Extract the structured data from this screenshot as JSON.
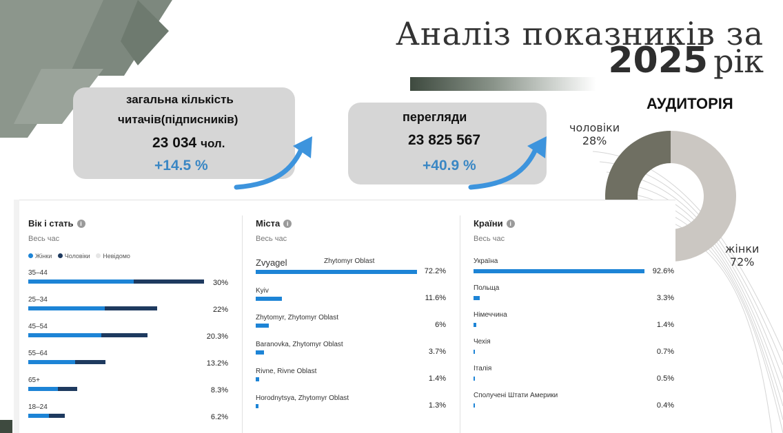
{
  "title": {
    "line1": "Аналіз показників за",
    "year": "2025",
    "suffix": "рік"
  },
  "cards": {
    "readers": {
      "label_line1": "загальна кількість",
      "label_line2": "читачів(підписників)",
      "value": "23 034",
      "unit": "чол.",
      "growth": "+14.5 %"
    },
    "views": {
      "label": "перегляди",
      "value": "23 825 567",
      "growth": "+40.9 %"
    }
  },
  "audience": {
    "title": "АУДИТОРІЯ",
    "men_label": "чоловіки",
    "men_pct": "28%",
    "women_label": "жінки",
    "women_pct": "72%",
    "chart_data": {
      "type": "pie",
      "categories": [
        "чоловіки",
        "жінки"
      ],
      "values": [
        28,
        72
      ],
      "colors": [
        "#6f6f62",
        "#cbc7c2"
      ]
    }
  },
  "age_gender": {
    "title": "Вік і стать",
    "period": "Весь час",
    "legend": {
      "women": "Жінки",
      "men": "Чоловіки",
      "unknown": "Невідомо"
    },
    "colors": {
      "women": "#1d84d6",
      "men": "#1e3a5f",
      "unknown": "#e6e6e6"
    },
    "chart_data": {
      "type": "bar",
      "categories": [
        "35–44",
        "25–34",
        "45–54",
        "55–64",
        "65+",
        "18–24"
      ],
      "series": [
        {
          "name": "Жінки",
          "values": [
            18,
            13,
            12.5,
            8,
            5,
            3.5
          ]
        },
        {
          "name": "Чоловіки",
          "values": [
            12,
            9,
            7.8,
            5.2,
            3.3,
            2.7
          ]
        }
      ],
      "totals": [
        "30%",
        "22%",
        "20.3%",
        "13.2%",
        "8.3%",
        "6.2%"
      ]
    }
  },
  "cities": {
    "title": "Міста",
    "period": "Весь час",
    "chart_data": {
      "type": "bar",
      "categories": [
        "Zvyagel",
        "Kyiv",
        "Zhytomyr, Zhytomyr Oblast",
        "Baranovka, Zhytomyr Oblast",
        "Rivne, Rivne Oblast",
        "Horodnytsya, Zhytomyr Oblast"
      ],
      "values": [
        72.2,
        11.6,
        6,
        3.7,
        1.4,
        1.3
      ],
      "labels": [
        "72.2%",
        "11.6%",
        "6%",
        "3.7%",
        "1.4%",
        "1.3%"
      ]
    },
    "first_region": "Zhytomyr Oblast"
  },
  "countries": {
    "title": "Країни",
    "period": "Весь час",
    "chart_data": {
      "type": "bar",
      "categories": [
        "Україна",
        "Польща",
        "Німеччина",
        "Чехія",
        "Італія",
        "Сполучені Штати Америки"
      ],
      "values": [
        92.6,
        3.3,
        1.4,
        0.7,
        0.5,
        0.4
      ],
      "labels": [
        "92.6%",
        "3.3%",
        "1.4%",
        "0.7%",
        "0.5%",
        "0.4%"
      ]
    }
  },
  "bar_color": "#1d84d6"
}
